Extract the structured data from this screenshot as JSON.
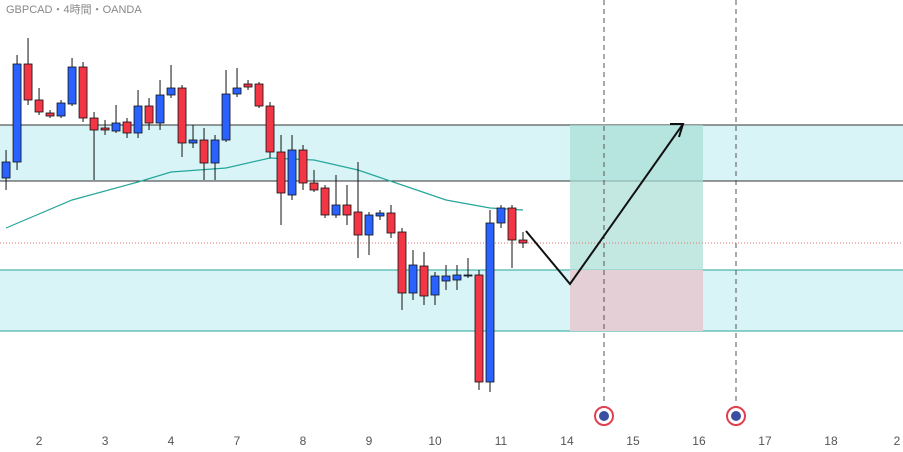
{
  "chart_data": {
    "type": "candlestick",
    "title": "GBPCAD・4時間・OANDA",
    "x": [
      0,
      1,
      2,
      3,
      4,
      5,
      6,
      7,
      8,
      9,
      10,
      11,
      12,
      13,
      14,
      15,
      16,
      17,
      18,
      19,
      20,
      21,
      22,
      23,
      24,
      25,
      26,
      27,
      28,
      29,
      30,
      31,
      32,
      33,
      34,
      35,
      36,
      37,
      38,
      39,
      40,
      41,
      42,
      43,
      44,
      45,
      46,
      47
    ],
    "open": [
      262,
      278,
      376,
      340,
      327,
      324,
      336,
      373,
      322,
      312,
      309,
      318,
      307,
      334,
      317,
      345,
      352,
      297,
      300,
      277,
      300,
      346,
      356,
      356,
      334,
      288,
      245,
      290,
      257,
      252,
      225,
      235,
      228,
      205,
      224,
      227,
      208,
      147,
      174,
      145,
      159,
      160,
      165,
      165,
      58,
      217,
      232,
      200
    ],
    "close": [
      278,
      376,
      340,
      328,
      324,
      337,
      373,
      322,
      310,
      310,
      317,
      307,
      334,
      317,
      345,
      352,
      297,
      300,
      277,
      300,
      346,
      352,
      353,
      334,
      288,
      247,
      290,
      257,
      250,
      225,
      235,
      225,
      205,
      225,
      227,
      207,
      147,
      175,
      144,
      164,
      164,
      165,
      165,
      58,
      217,
      232,
      200,
      197
    ],
    "high": [
      290,
      385,
      402,
      352,
      330,
      340,
      382,
      378,
      328,
      320,
      335,
      322,
      350,
      342,
      360,
      375,
      355,
      315,
      312,
      305,
      370,
      372,
      360,
      358,
      338,
      305,
      305,
      295,
      270,
      255,
      265,
      255,
      278,
      228,
      230,
      235,
      212,
      190,
      188,
      168,
      175,
      175,
      182,
      170,
      230,
      235,
      235,
      208
    ],
    "low": [
      250,
      270,
      335,
      325,
      322,
      322,
      334,
      318,
      260,
      305,
      307,
      302,
      302,
      310,
      310,
      342,
      283,
      292,
      260,
      260,
      298,
      343,
      350,
      332,
      282,
      215,
      240,
      250,
      248,
      222,
      222,
      215,
      182,
      185,
      220,
      202,
      130,
      140,
      135,
      135,
      150,
      150,
      162,
      50,
      48,
      212,
      172,
      192
    ],
    "up_color": "#2962ff",
    "down_color": "#f23645",
    "moving_average": {
      "color": "#26a69a",
      "x": [
        0,
        6,
        12,
        15,
        20,
        24,
        28,
        32,
        36,
        40,
        44,
        47
      ],
      "values": [
        212,
        240,
        258,
        268,
        272,
        282,
        280,
        270,
        255,
        240,
        232,
        230
      ]
    },
    "xlim": [
      -0.55,
      81.55
    ],
    "ylim": [
      0,
      440
    ],
    "xticks": [
      {
        "value": 3,
        "label": "2"
      },
      {
        "value": 9,
        "label": "3"
      },
      {
        "value": 15,
        "label": "4"
      },
      {
        "value": 21,
        "label": "7"
      },
      {
        "value": 27,
        "label": "8"
      },
      {
        "value": 33,
        "label": "9"
      },
      {
        "value": 39,
        "label": "10"
      },
      {
        "value": 45,
        "label": "11"
      },
      {
        "value": 51,
        "label": "14"
      },
      {
        "value": 57,
        "label": "15"
      },
      {
        "value": 63,
        "label": "16"
      },
      {
        "value": 69,
        "label": "17"
      },
      {
        "value": 75,
        "label": "18"
      },
      {
        "value": 81,
        "label": "2"
      }
    ]
  }
}
